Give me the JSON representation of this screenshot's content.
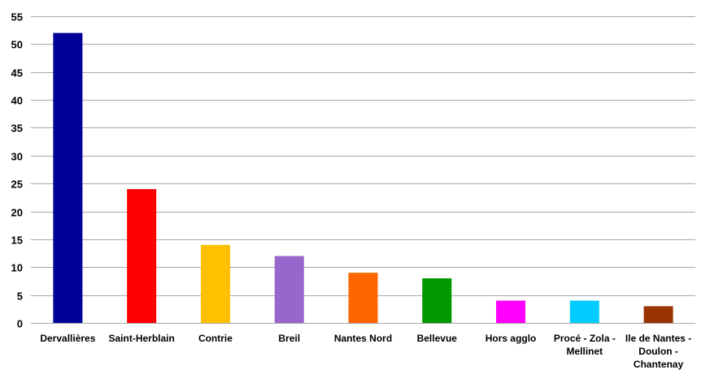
{
  "chart_data": {
    "type": "bar",
    "title": "",
    "xlabel": "",
    "ylabel": "",
    "ylim": [
      0,
      55
    ],
    "yticks": [
      0,
      5,
      10,
      15,
      20,
      25,
      30,
      35,
      40,
      45,
      50,
      55
    ],
    "grid": true,
    "legend": "none",
    "categories": [
      [
        "Dervallières"
      ],
      [
        "Saint-Herblain"
      ],
      [
        "Contrie"
      ],
      [
        "Breil"
      ],
      [
        "Nantes Nord"
      ],
      [
        "Bellevue"
      ],
      [
        "Hors agglo"
      ],
      [
        "Procé - Zola -",
        "Mellinet"
      ],
      [
        "Ile de Nantes -",
        "Doulon -",
        "Chantenay"
      ]
    ],
    "values": [
      52,
      24,
      14,
      12,
      9,
      8,
      4,
      4,
      3
    ],
    "colors": [
      "#000099",
      "#ff0000",
      "#ffc000",
      "#9966cc",
      "#ff6600",
      "#009900",
      "#ff00ff",
      "#00ccff",
      "#993300"
    ],
    "gridline_color": "#a6a6a6"
  }
}
